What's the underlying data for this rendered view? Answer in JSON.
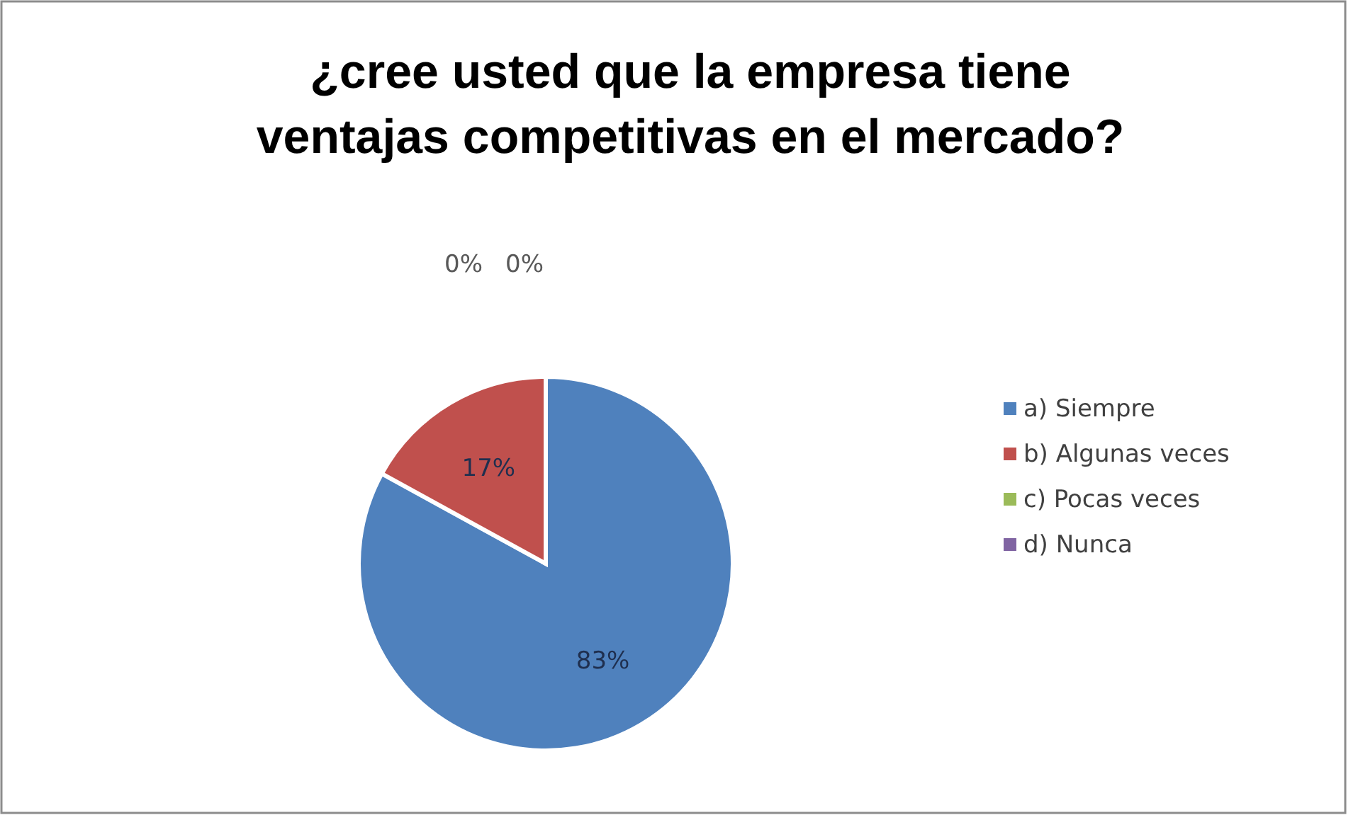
{
  "chart_data": {
    "type": "pie",
    "title": "¿cree usted que la empresa tiene ventajas competitivas en el mercado?",
    "categories": [
      "a) Siempre",
      "b) Algunas veces",
      "c) Pocas veces",
      "d) Nunca"
    ],
    "values": [
      83,
      17,
      0,
      0
    ],
    "colors": [
      "#4f81bd",
      "#c0504d",
      "#9bbb59",
      "#8064a2"
    ],
    "value_labels": [
      "83%",
      "17%",
      "0%",
      "0%"
    ],
    "legend": "right"
  }
}
